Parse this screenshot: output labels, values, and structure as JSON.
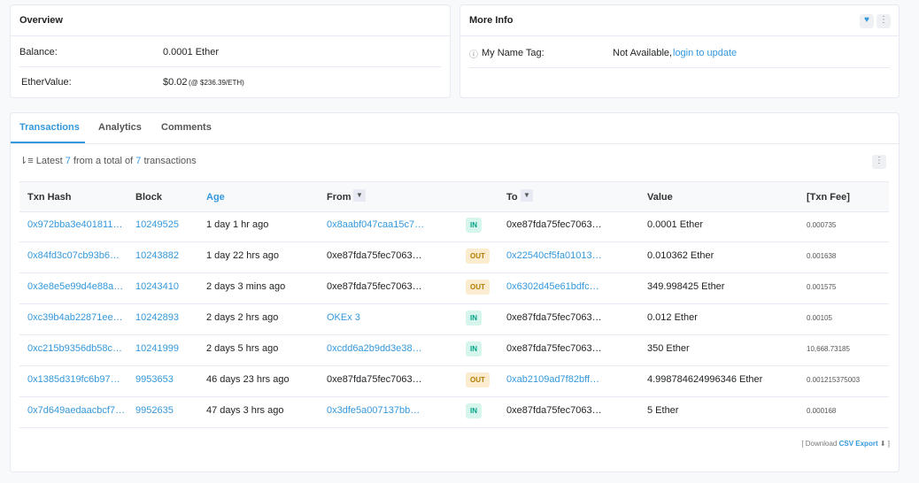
{
  "overview": {
    "title": "Overview",
    "balance_label": "Balance:",
    "balance_value": "0.0001 Ether",
    "ethervalue_label": "EtherValue:",
    "ethervalue_value": "$0.02",
    "ethervalue_rate": "(@ $236.39/ETH)"
  },
  "more_info": {
    "title": "More Info",
    "name_tag_label": "My Name Tag:",
    "name_tag_value": "Not Available,",
    "name_tag_link": "login to update"
  },
  "tabs": [
    "Transactions",
    "Analytics",
    "Comments"
  ],
  "summary": {
    "prefix": "Latest",
    "shown": "7",
    "middle": "from a total of",
    "total": "7",
    "suffix": "transactions"
  },
  "table": {
    "headers": [
      "Txn Hash",
      "Block",
      "Age",
      "From",
      "To",
      "Value",
      "[Txn Fee]"
    ],
    "rows": [
      [
        "0x972bba3e401811…",
        "10249525",
        "1 day 1 hr ago",
        "0x8aabf047caa15c7…",
        "IN",
        "0xe87fda75fec7063…",
        "0.0001 Ether",
        "0.000735"
      ],
      [
        "0x84fd3c07cb93b6…",
        "10243882",
        "1 day 22 hrs ago",
        "0xe87fda75fec7063…",
        "OUT",
        "0x22540cf5fa01013…",
        "0.010362 Ether",
        "0.001638"
      ],
      [
        "0x3e8e5e99d4e88a…",
        "10243410",
        "2 days 3 mins ago",
        "0xe87fda75fec7063…",
        "OUT",
        "0x6302d45e61bdfc…",
        "349.998425 Ether",
        "0.001575"
      ],
      [
        "0xc39b4ab22871ee…",
        "10242893",
        "2 days 2 hrs ago",
        "OKEx 3",
        "IN",
        "0xe87fda75fec7063…",
        "0.012 Ether",
        "0.00105"
      ],
      [
        "0xc215b9356db58c…",
        "10241999",
        "2 days 5 hrs ago",
        "0xcdd6a2b9dd3e38…",
        "IN",
        "0xe87fda75fec7063…",
        "350 Ether",
        "10,668.73185"
      ],
      [
        "0x1385d319fc6b97…",
        "9953653",
        "46 days 23 hrs ago",
        "0xe87fda75fec7063…",
        "OUT",
        "0xab2109ad7f82bff…",
        "4.998784624996346 Ether",
        "0.001215375003"
      ],
      [
        "0x7d649aedaacbcf7…",
        "9952635",
        "47 days 3 hrs ago",
        "0x3dfe5a007137bb…",
        "IN",
        "0xe87fda75fec7063…",
        "5 Ether",
        "0.000168"
      ]
    ]
  },
  "footer": {
    "prefix": "[ Download",
    "link": "CSV Export",
    "suffix": "]"
  }
}
